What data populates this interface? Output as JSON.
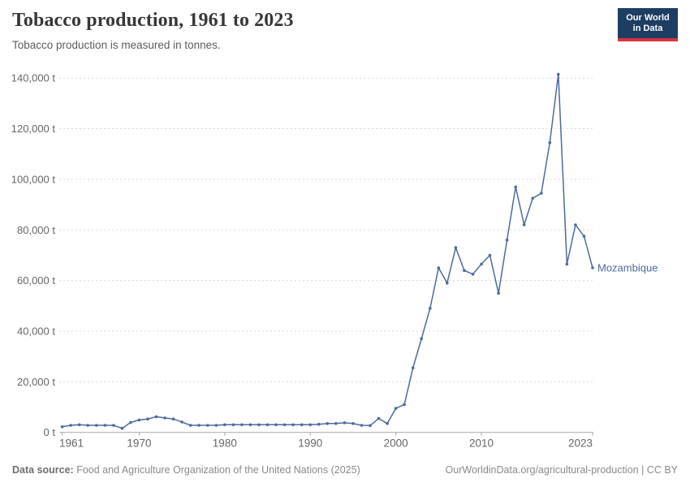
{
  "header": {
    "title": "Tobacco production, 1961 to 2023",
    "subtitle": "Tobacco production is measured in tonnes."
  },
  "logo": {
    "line1": "Our World",
    "line2": "in Data",
    "bg_color": "#1d3d63",
    "accent_color": "#d8323c"
  },
  "chart_data": {
    "type": "line",
    "title": "Tobacco production, 1961 to 2023",
    "subtitle": "Tobacco production is measured in tonnes.",
    "xlabel": "",
    "ylabel": "",
    "xlim": [
      1961,
      2023
    ],
    "ylim": [
      0,
      140000
    ],
    "grid": "horizontal-dashed",
    "legend_position": "end-of-line-label",
    "x_ticks": [
      1961,
      1970,
      1980,
      1990,
      2000,
      2010,
      2023
    ],
    "y_ticks": [
      0,
      20000,
      40000,
      60000,
      80000,
      100000,
      120000,
      140000
    ],
    "y_tick_labels": [
      "0 t",
      "20,000 t",
      "40,000 t",
      "60,000 t",
      "80,000 t",
      "100,000 t",
      "120,000 t",
      "140,000 t"
    ],
    "series": [
      {
        "name": "Mozambique",
        "color": "#4C6A9C",
        "x": [
          1961,
          1962,
          1963,
          1964,
          1965,
          1966,
          1967,
          1968,
          1969,
          1970,
          1971,
          1972,
          1973,
          1974,
          1975,
          1976,
          1977,
          1978,
          1979,
          1980,
          1981,
          1982,
          1983,
          1984,
          1985,
          1986,
          1987,
          1988,
          1989,
          1990,
          1991,
          1992,
          1993,
          1994,
          1995,
          1996,
          1997,
          1998,
          1999,
          2000,
          2001,
          2002,
          2003,
          2004,
          2005,
          2006,
          2007,
          2008,
          2009,
          2010,
          2011,
          2012,
          2013,
          2014,
          2015,
          2016,
          2017,
          2018,
          2019,
          2020,
          2021,
          2022,
          2023
        ],
        "values": [
          2200,
          2800,
          3000,
          2800,
          2800,
          2800,
          2800,
          1600,
          3900,
          4900,
          5300,
          6200,
          5700,
          5300,
          4100,
          2800,
          2800,
          2800,
          2800,
          3000,
          3000,
          3000,
          3000,
          3000,
          3000,
          3000,
          3000,
          3000,
          3000,
          3000,
          3200,
          3500,
          3500,
          3800,
          3500,
          2800,
          2700,
          5500,
          3500,
          9500,
          11000,
          25500,
          37000,
          49000,
          65000,
          59000,
          73000,
          64000,
          62500,
          66500,
          70000,
          55000,
          76000,
          97000,
          82000,
          92500,
          94500,
          114500,
          141500,
          66500,
          82000,
          77500,
          65000
        ]
      }
    ],
    "colors": {
      "gridline": "#dadada",
      "axis": "#a7a7a7",
      "tick_label": "#666666"
    }
  },
  "footer": {
    "source_label": "Data source:",
    "source": "Food and Agriculture Organization of the United Nations (2025)",
    "credit": "OurWorldinData.org/agricultural-production | CC BY"
  }
}
